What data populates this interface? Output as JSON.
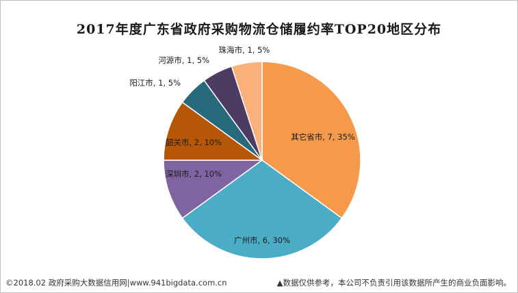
{
  "chart_data": {
    "type": "pie",
    "title": "2017年度广东省政府采购物流仓储履约率TOP20地区分布",
    "slices": [
      {
        "name": "其它省市",
        "value": 7,
        "percent": "35%",
        "color": "#f59a4a",
        "label": "其它省市, 7, 35%"
      },
      {
        "name": "广州市",
        "value": 6,
        "percent": "30%",
        "color": "#4bacc6",
        "label": "广州市, 6, 30%"
      },
      {
        "name": "深圳市",
        "value": 2,
        "percent": "10%",
        "color": "#8064a2",
        "label": "深圳市, 2, 10%"
      },
      {
        "name": "韶关市",
        "value": 2,
        "percent": "10%",
        "color": "#b65708",
        "label": "韶关市, 2, 10%"
      },
      {
        "name": "阳江市",
        "value": 1,
        "percent": "5%",
        "color": "#276a7c",
        "label": "阳江市, 1, 5%"
      },
      {
        "name": "河源市",
        "value": 1,
        "percent": "5%",
        "color": "#4d3b62",
        "label": "河源市, 1, 5%"
      },
      {
        "name": "珠海市",
        "value": 1,
        "percent": "5%",
        "color": "#f9b07a",
        "label": "珠海市, 1, 5%"
      }
    ]
  },
  "footer": {
    "source": "©2018.02 政府采购大数据信用网|www.941bigdata.com.cn",
    "disclaimer": "▲数据仅供参考，本公司不负责引用该数据所产生的商业负面影响。"
  }
}
